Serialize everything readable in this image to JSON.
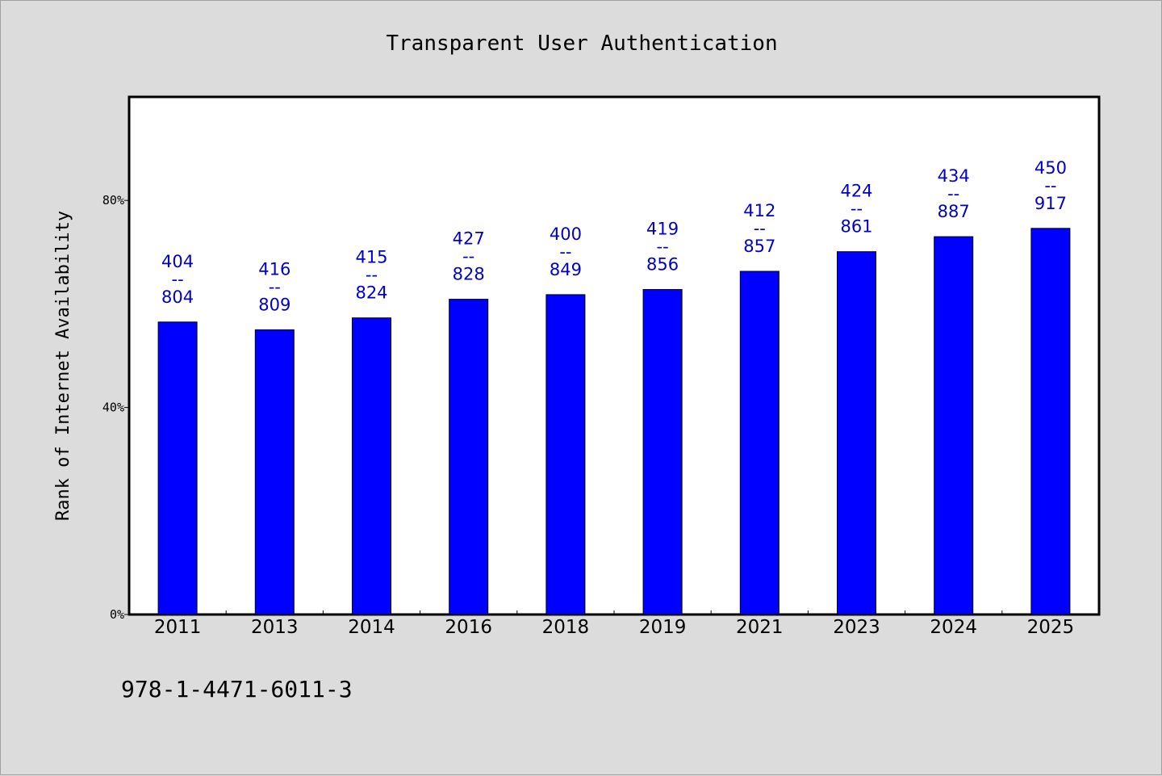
{
  "chart_data": {
    "type": "bar",
    "title": "Transparent User Authentication",
    "ylabel": "Rank of Internet Availability",
    "xlabel": "",
    "categories": [
      "2011",
      "2013",
      "2014",
      "2016",
      "2018",
      "2019",
      "2021",
      "2023",
      "2024",
      "2025"
    ],
    "values": [
      56.5,
      55.0,
      57.3,
      60.9,
      61.8,
      62.8,
      66.3,
      70.1,
      73.0,
      74.6
    ],
    "data_labels": [
      {
        "top": "404",
        "sep": "--",
        "bottom": "804"
      },
      {
        "top": "416",
        "sep": "--",
        "bottom": "809"
      },
      {
        "top": "415",
        "sep": "--",
        "bottom": "824"
      },
      {
        "top": "427",
        "sep": "--",
        "bottom": "828"
      },
      {
        "top": "400",
        "sep": "--",
        "bottom": "849"
      },
      {
        "top": "419",
        "sep": "--",
        "bottom": "856"
      },
      {
        "top": "412",
        "sep": "--",
        "bottom": "857"
      },
      {
        "top": "424",
        "sep": "--",
        "bottom": "861"
      },
      {
        "top": "434",
        "sep": "--",
        "bottom": "887"
      },
      {
        "top": "450",
        "sep": "--",
        "bottom": "917"
      }
    ],
    "ylim": [
      0,
      100
    ],
    "yticks": [
      0,
      40,
      80
    ],
    "ytick_labels": [
      "0%",
      "40%",
      "80%"
    ],
    "bar_color": "#0000ff",
    "label_color": "#0000cc",
    "grid": false,
    "legend": "none"
  },
  "footer": {
    "isbn": "978-1-4471-6011-3"
  }
}
